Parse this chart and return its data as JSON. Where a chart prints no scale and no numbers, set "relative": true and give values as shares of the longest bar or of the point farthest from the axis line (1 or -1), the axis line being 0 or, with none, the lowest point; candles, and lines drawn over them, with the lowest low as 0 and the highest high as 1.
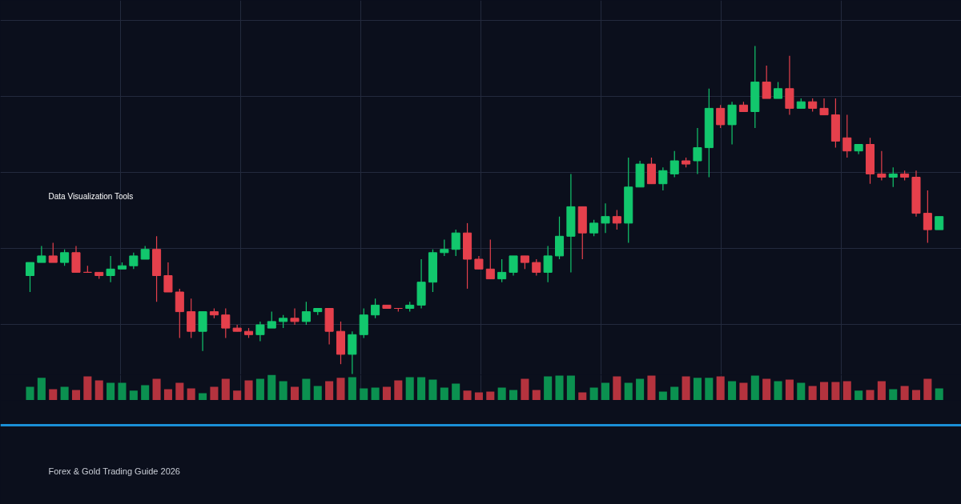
{
  "chart_data": [
    {
      "type": "candlestick",
      "title": "Data Visualization Tools",
      "relative": true,
      "grid": true,
      "categories": [
        null,
        null,
        null,
        null,
        null,
        null,
        null,
        null,
        null,
        null,
        null,
        null,
        null,
        null,
        null,
        null,
        null,
        null,
        null,
        null,
        null,
        null,
        null,
        null,
        null,
        null,
        null,
        null,
        null,
        null,
        null,
        null,
        null,
        null,
        null,
        null,
        null,
        null,
        null,
        null,
        null,
        null,
        null,
        null,
        null,
        null,
        null,
        null,
        null,
        null,
        null,
        null,
        null,
        null,
        null,
        null,
        null,
        null,
        null,
        null,
        null,
        null,
        null,
        null,
        null,
        null,
        null,
        null,
        null,
        null,
        null,
        null,
        null,
        null,
        null,
        null,
        null,
        null,
        null,
        null
      ],
      "ohlc": [
        [
          0.3,
          0.34,
          0.25,
          0.34
        ],
        [
          0.34,
          0.39,
          0.34,
          0.36
        ],
        [
          0.36,
          0.4,
          0.34,
          0.34
        ],
        [
          0.34,
          0.38,
          0.33,
          0.37
        ],
        [
          0.37,
          0.39,
          0.31,
          0.31
        ],
        [
          0.31,
          0.33,
          0.31,
          0.31
        ],
        [
          0.31,
          0.31,
          0.29,
          0.3
        ],
        [
          0.3,
          0.36,
          0.28,
          0.32
        ],
        [
          0.32,
          0.34,
          0.32,
          0.33
        ],
        [
          0.33,
          0.37,
          0.32,
          0.36
        ],
        [
          0.35,
          0.39,
          0.35,
          0.38
        ],
        [
          0.38,
          0.42,
          0.22,
          0.3
        ],
        [
          0.3,
          0.34,
          0.25,
          0.25
        ],
        [
          0.25,
          0.26,
          0.11,
          0.19
        ],
        [
          0.19,
          0.23,
          0.11,
          0.13
        ],
        [
          0.13,
          0.19,
          0.07,
          0.19
        ],
        [
          0.19,
          0.2,
          0.17,
          0.18
        ],
        [
          0.18,
          0.2,
          0.11,
          0.14
        ],
        [
          0.14,
          0.15,
          0.13,
          0.13
        ],
        [
          0.13,
          0.14,
          0.11,
          0.12
        ],
        [
          0.12,
          0.16,
          0.1,
          0.15
        ],
        [
          0.14,
          0.19,
          0.14,
          0.16
        ],
        [
          0.16,
          0.18,
          0.14,
          0.17
        ],
        [
          0.17,
          0.2,
          0.15,
          0.16
        ],
        [
          0.16,
          0.22,
          0.15,
          0.19
        ],
        [
          0.19,
          0.2,
          0.18,
          0.2
        ],
        [
          0.2,
          0.2,
          0.09,
          0.13
        ],
        [
          0.13,
          0.16,
          0.03,
          0.06
        ],
        [
          0.06,
          0.13,
          0,
          0.12
        ],
        [
          0.12,
          0.2,
          0.11,
          0.18
        ],
        [
          0.18,
          0.23,
          0.17,
          0.21
        ],
        [
          0.21,
          0.21,
          0.2,
          0.2
        ],
        [
          0.2,
          0.2,
          0.19,
          0.2
        ],
        [
          0.2,
          0.22,
          0.19,
          0.21
        ],
        [
          0.21,
          0.35,
          0.2,
          0.28
        ],
        [
          0.28,
          0.38,
          0.25,
          0.37
        ],
        [
          0.37,
          0.41,
          0.36,
          0.38
        ],
        [
          0.38,
          0.44,
          0.36,
          0.43
        ],
        [
          0.43,
          0.46,
          0.26,
          0.35
        ],
        [
          0.35,
          0.36,
          0.32,
          0.32
        ],
        [
          0.32,
          0.41,
          0.29,
          0.29
        ],
        [
          0.29,
          0.35,
          0.28,
          0.31
        ],
        [
          0.31,
          0.36,
          0.3,
          0.36
        ],
        [
          0.36,
          0.36,
          0.32,
          0.34
        ],
        [
          0.34,
          0.35,
          0.3,
          0.31
        ],
        [
          0.31,
          0.39,
          0.28,
          0.36
        ],
        [
          0.36,
          0.48,
          0.35,
          0.42
        ],
        [
          0.42,
          0.61,
          0.31,
          0.51
        ],
        [
          0.51,
          0.51,
          0.35,
          0.43
        ],
        [
          0.43,
          0.47,
          0.42,
          0.46
        ],
        [
          0.46,
          0.52,
          0.43,
          0.48
        ],
        [
          0.48,
          0.5,
          0.44,
          0.46
        ],
        [
          0.46,
          0.66,
          0.4,
          0.57
        ],
        [
          0.57,
          0.65,
          0.57,
          0.64
        ],
        [
          0.64,
          0.66,
          0.58,
          0.58
        ],
        [
          0.58,
          0.63,
          0.56,
          0.62
        ],
        [
          0.61,
          0.68,
          0.6,
          0.65
        ],
        [
          0.65,
          0.66,
          0.63,
          0.64
        ],
        [
          0.65,
          0.75,
          0.61,
          0.69
        ],
        [
          0.69,
          0.87,
          0.6,
          0.81
        ],
        [
          0.81,
          0.82,
          0.75,
          0.76
        ],
        [
          0.76,
          0.83,
          0.7,
          0.82
        ],
        [
          0.82,
          0.83,
          0.8,
          0.8
        ],
        [
          0.8,
          1,
          0.75,
          0.89
        ],
        [
          0.89,
          0.94,
          0.84,
          0.84
        ],
        [
          0.84,
          0.89,
          0.84,
          0.87
        ],
        [
          0.87,
          0.97,
          0.79,
          0.81
        ],
        [
          0.81,
          0.84,
          0.81,
          0.83
        ],
        [
          0.83,
          0.84,
          0.8,
          0.81
        ],
        [
          0.81,
          0.84,
          0.79,
          0.79
        ],
        [
          0.79,
          0.84,
          0.69,
          0.71
        ],
        [
          0.72,
          0.79,
          0.66,
          0.68
        ],
        [
          0.68,
          0.7,
          0.67,
          0.7
        ],
        [
          0.7,
          0.72,
          0.58,
          0.61
        ],
        [
          0.61,
          0.68,
          0.59,
          0.6
        ],
        [
          0.6,
          0.63,
          0.57,
          0.61
        ],
        [
          0.61,
          0.62,
          0.59,
          0.6
        ],
        [
          0.6,
          0.62,
          0.48,
          0.49
        ],
        [
          0.49,
          0.56,
          0.4,
          0.44
        ],
        [
          0.44,
          0.48,
          0.44,
          0.48
        ]
      ],
      "colors": [
        "#12c76d",
        "#12c76d",
        "#e5404c",
        "#12c76d",
        "#e5404c",
        "#e5404c",
        "#e5404c",
        "#12c76d",
        "#12c76d",
        "#12c76d",
        "#12c76d",
        "#e5404c",
        "#e5404c",
        "#e5404c",
        "#e5404c",
        "#12c76d",
        "#e5404c",
        "#e5404c",
        "#e5404c",
        "#e5404c",
        "#12c76d",
        "#12c76d",
        "#12c76d",
        "#e5404c",
        "#12c76d",
        "#12c76d",
        "#e5404c",
        "#e5404c",
        "#12c76d",
        "#12c76d",
        "#12c76d",
        "#e5404c",
        "#e5404c",
        "#12c76d",
        "#12c76d",
        "#12c76d",
        "#12c76d",
        "#12c76d",
        "#e5404c",
        "#e5404c",
        "#e5404c",
        "#12c76d",
        "#12c76d",
        "#e5404c",
        "#e5404c",
        "#12c76d",
        "#12c76d",
        "#12c76d",
        "#e5404c",
        "#12c76d",
        "#12c76d",
        "#e5404c",
        "#12c76d",
        "#12c76d",
        "#e5404c",
        "#12c76d",
        "#12c76d",
        "#e5404c",
        "#12c76d",
        "#12c76d",
        "#e5404c",
        "#12c76d",
        "#e5404c",
        "#12c76d",
        "#e5404c",
        "#12c76d",
        "#e5404c",
        "#12c76d",
        "#e5404c",
        "#e5404c",
        "#e5404c",
        "#e5404c",
        "#12c76d",
        "#e5404c",
        "#e5404c",
        "#12c76d",
        "#e5404c",
        "#e5404c",
        "#e5404c",
        "#12c76d"
      ]
    },
    {
      "type": "bar",
      "relative": true,
      "grid": true,
      "categories": [
        null,
        null,
        null,
        null,
        null,
        null,
        null,
        null,
        null,
        null,
        null,
        null,
        null,
        null,
        null,
        null,
        null,
        null,
        null,
        null,
        null,
        null,
        null,
        null,
        null,
        null,
        null,
        null,
        null,
        null,
        null,
        null,
        null,
        null,
        null,
        null,
        null,
        null,
        null,
        null,
        null,
        null,
        null,
        null,
        null,
        null,
        null,
        null,
        null,
        null,
        null,
        null,
        null,
        null,
        null,
        null,
        null,
        null,
        null,
        null,
        null,
        null,
        null,
        null,
        null,
        null,
        null,
        null,
        null,
        null,
        null,
        null,
        null,
        null,
        null,
        null,
        null,
        null,
        null,
        null
      ],
      "values": [
        0.53,
        0.88,
        0.44,
        0.53,
        0.41,
        0.94,
        0.78,
        0.69,
        0.69,
        0.38,
        0.59,
        0.84,
        0.44,
        0.69,
        0.47,
        0.28,
        0.53,
        0.84,
        0.38,
        0.78,
        0.84,
        1,
        0.75,
        0.53,
        0.84,
        0.56,
        0.75,
        0.88,
        0.91,
        0.47,
        0.5,
        0.53,
        0.78,
        0.91,
        0.91,
        0.81,
        0.5,
        0.66,
        0.38,
        0.31,
        0.34,
        0.5,
        0.41,
        0.84,
        0.41,
        0.94,
        0.97,
        0.97,
        0.31,
        0.5,
        0.69,
        0.94,
        0.69,
        0.84,
        0.97,
        0.34,
        0.53,
        0.94,
        0.88,
        0.88,
        0.94,
        0.75,
        0.69,
        0.97,
        0.84,
        0.75,
        0.81,
        0.69,
        0.56,
        0.72,
        0.72,
        0.75,
        0.38,
        0.41,
        0.75,
        0.44,
        0.56,
        0.41,
        0.84,
        0.47
      ],
      "colors": [
        "#0b9150",
        "#0b9150",
        "#b5333e",
        "#0b9150",
        "#b5333e",
        "#b5333e",
        "#b5333e",
        "#0b9150",
        "#0b9150",
        "#0b9150",
        "#0b9150",
        "#b5333e",
        "#b5333e",
        "#b5333e",
        "#b5333e",
        "#0b9150",
        "#b5333e",
        "#b5333e",
        "#b5333e",
        "#b5333e",
        "#0b9150",
        "#0b9150",
        "#0b9150",
        "#b5333e",
        "#0b9150",
        "#0b9150",
        "#b5333e",
        "#b5333e",
        "#0b9150",
        "#0b9150",
        "#0b9150",
        "#b5333e",
        "#b5333e",
        "#0b9150",
        "#0b9150",
        "#0b9150",
        "#0b9150",
        "#0b9150",
        "#b5333e",
        "#b5333e",
        "#b5333e",
        "#0b9150",
        "#0b9150",
        "#b5333e",
        "#b5333e",
        "#0b9150",
        "#0b9150",
        "#0b9150",
        "#b5333e",
        "#0b9150",
        "#0b9150",
        "#b5333e",
        "#0b9150",
        "#0b9150",
        "#b5333e",
        "#0b9150",
        "#0b9150",
        "#b5333e",
        "#0b9150",
        "#0b9150",
        "#b5333e",
        "#0b9150",
        "#b5333e",
        "#0b9150",
        "#b5333e",
        "#0b9150",
        "#b5333e",
        "#0b9150",
        "#b5333e",
        "#b5333e",
        "#b5333e",
        "#b5333e",
        "#0b9150",
        "#b5333e",
        "#b5333e",
        "#0b9150",
        "#b5333e",
        "#b5333e",
        "#b5333e",
        "#0b9150"
      ],
      "annotations": [
        "Forex & Gold Trading Guide 2026"
      ]
    }
  ]
}
